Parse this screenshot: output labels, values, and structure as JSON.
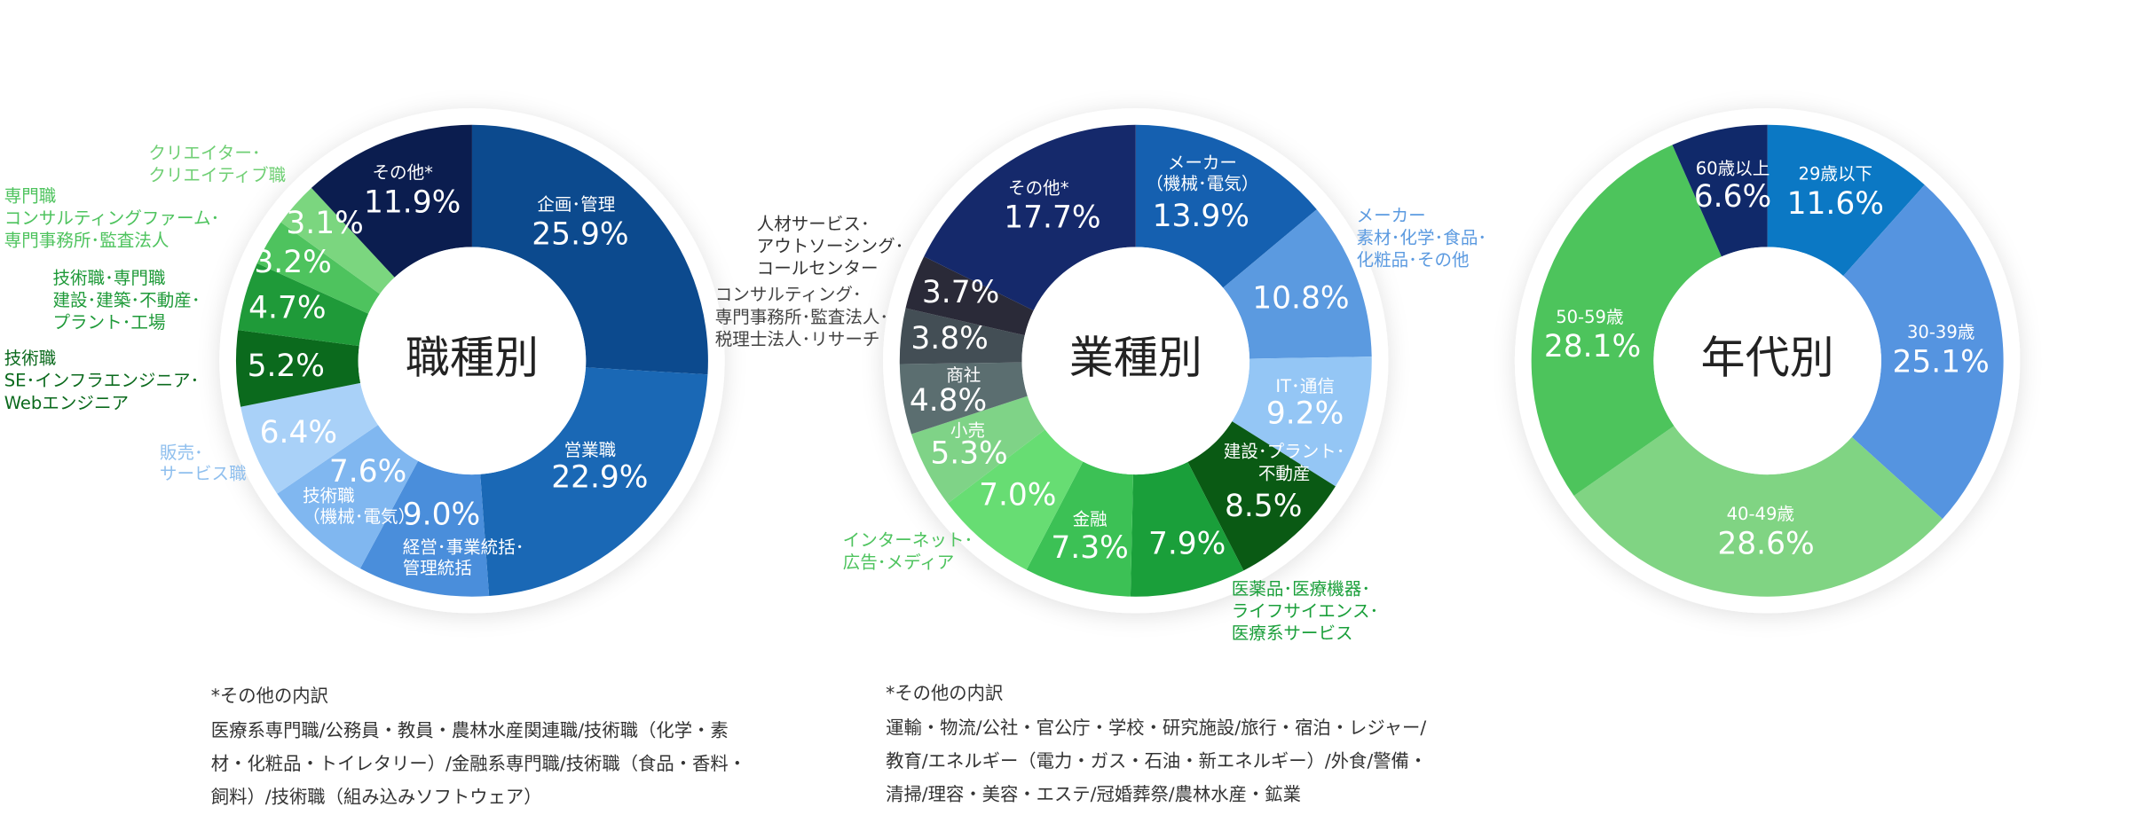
{
  "chart_data": [
    {
      "type": "donut",
      "title": "職種別",
      "categories": [
        [
          "企画･管理"
        ],
        [
          "営業職"
        ],
        [
          "経営･事業統括･",
          "管理統括"
        ],
        [
          "技術職",
          "（機械･電気）"
        ],
        [
          "販売･",
          "サービス職"
        ],
        [
          "技術職",
          "SE･インフラエンジニア･",
          "Webエンジニア"
        ],
        [
          "技術職･専門職",
          "建設･建築･不動産･",
          "プラント･工場"
        ],
        [
          "専門職",
          "コンサルティングファーム･",
          "専門事務所･監査法人"
        ],
        [
          "クリエイター･",
          "クリエイティブ職"
        ],
        [
          "その他*"
        ]
      ],
      "values": [
        25.9,
        22.9,
        9.0,
        7.6,
        6.4,
        5.2,
        4.7,
        3.2,
        3.1,
        11.9
      ],
      "value_labels": [
        "25.9%",
        "22.9%",
        "9.0%",
        "7.6%",
        "6.4%",
        "5.2%",
        "4.7%",
        "3.2%",
        "3.1%",
        "11.9%"
      ],
      "colors": [
        "#0c4a8e",
        "#1a68b5",
        "#4a8edb",
        "#80b7f0",
        "#a9d1f8",
        "#0b6a1d",
        "#1f9a39",
        "#4ec35e",
        "#7bd67f",
        "#0b1d4f"
      ]
    },
    {
      "type": "donut",
      "title": "業種別",
      "categories": [
        [
          "メーカー",
          "（機械･電気）"
        ],
        [
          "メーカー",
          "素材･化学･食品･",
          "化粧品･その他"
        ],
        [
          "IT･通信"
        ],
        [
          "建設･プラント･",
          "不動産"
        ],
        [
          "医薬品･医療機器･",
          "ライフサイエンス･",
          "医療系サービス"
        ],
        [
          "金融"
        ],
        [
          "インターネット･",
          "広告･メディア"
        ],
        [
          "小売"
        ],
        [
          "商社"
        ],
        [
          "コンサルティング･",
          "専門事務所･監査法人･",
          "税理士法人･リサーチ"
        ],
        [
          "人材サービス･",
          "アウトソーシング･",
          "コールセンター"
        ],
        [
          "その他*"
        ]
      ],
      "values": [
        13.9,
        10.8,
        9.2,
        8.5,
        7.9,
        7.3,
        7.0,
        5.3,
        4.8,
        3.8,
        3.7,
        17.7
      ],
      "value_labels": [
        "13.9%",
        "10.8%",
        "9.2%",
        "8.5%",
        "7.9%",
        "7.3%",
        "7.0%",
        "5.3%",
        "4.8%",
        "3.8%",
        "3.7%",
        "17.7%"
      ],
      "colors": [
        "#1560b0",
        "#5b9ae0",
        "#94c6f5",
        "#0a5a14",
        "#1a9f3a",
        "#3cc155",
        "#67dd73",
        "#7fd387",
        "#5b6e70",
        "#434e55",
        "#2a2a38",
        "#15296b"
      ]
    },
    {
      "type": "donut",
      "title": "年代別",
      "categories": [
        [
          "29歳以下"
        ],
        [
          "30-39歳"
        ],
        [
          "40-49歳"
        ],
        [
          "50-59歳"
        ],
        [
          "60歳以上"
        ]
      ],
      "values": [
        11.6,
        25.1,
        28.6,
        28.1,
        6.6
      ],
      "value_labels": [
        "11.6%",
        "25.1%",
        "28.6%",
        "28.1%",
        "6.6%"
      ],
      "colors": [
        "#0b78c4",
        "#5594e0",
        "#80d483",
        "#4dc45c",
        "#10296a"
      ]
    }
  ],
  "notes": [
    {
      "title": "*その他の内訳",
      "lines": [
        "医療系専門職/公務員・教員・農林水産関連職/技術職（化学・素",
        "材・化粧品・トイレタリー）/金融系専門職/技術職（食品・香料・",
        "飼料）/技術職（組み込みソフトウェア）"
      ]
    },
    {
      "title": "*その他の内訳",
      "lines": [
        "運輸・物流/公社・官公庁・学校・研究施設/旅行・宿泊・レジャー/",
        "教育/エネルギー（電力・ガス・石油・新エネルギー）/外食/警備・",
        "清掃/理容・美容・エステ/冠婚葬祭/農林水産・鉱業"
      ]
    }
  ]
}
